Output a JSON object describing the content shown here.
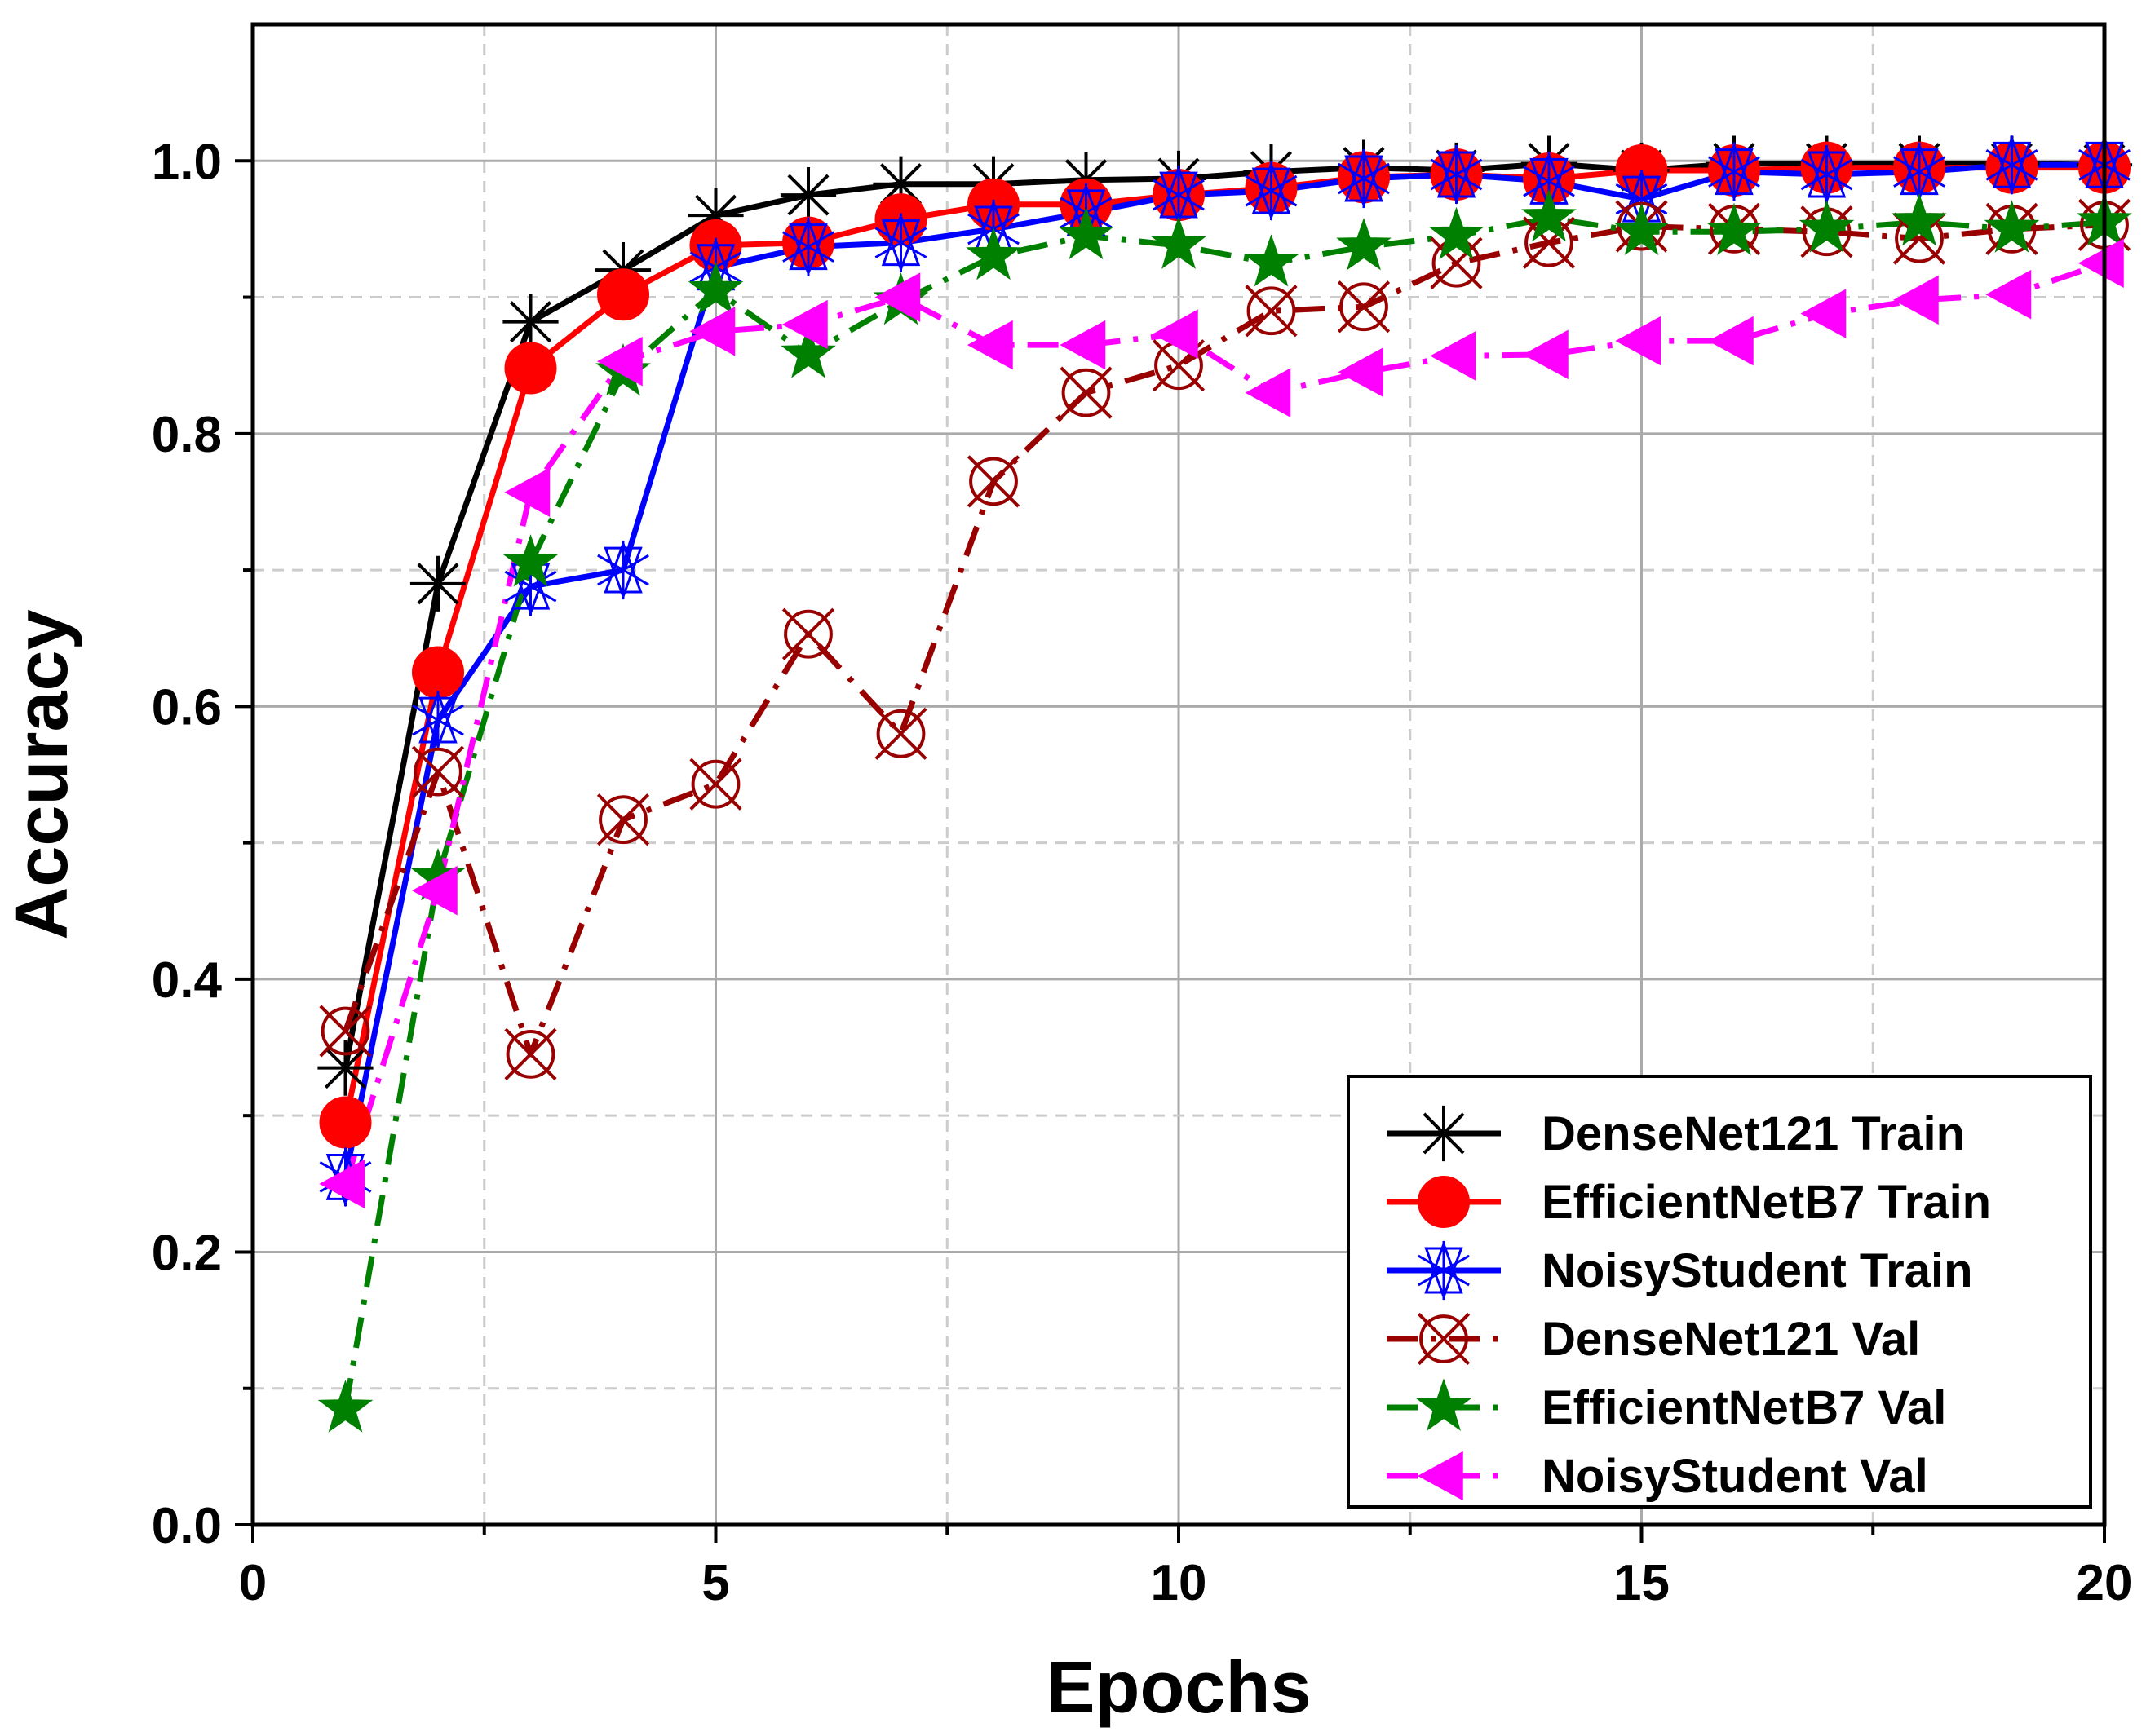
{
  "chart_data": {
    "type": "line",
    "xlabel": "Epochs",
    "ylabel": "Accuracy",
    "xlim": [
      0,
      20
    ],
    "ylim": [
      0,
      1.1
    ],
    "xticks": [
      0,
      5,
      10,
      15,
      20
    ],
    "yticks": [
      0.0,
      0.2,
      0.4,
      0.6,
      0.8,
      1.0
    ],
    "xtick_labels": [
      "0",
      "5",
      "10",
      "15",
      "20"
    ],
    "ytick_labels": [
      "0.0",
      "0.2",
      "0.4",
      "0.6",
      "0.8",
      "1.0"
    ],
    "grid": true,
    "legend_position": "bottom-right",
    "x": [
      1,
      2,
      3,
      4,
      5,
      6,
      7,
      8,
      9,
      10,
      11,
      12,
      13,
      14,
      15,
      16,
      17,
      18,
      19,
      20
    ],
    "series": [
      {
        "name": "DenseNet121 Train",
        "color": "#000000",
        "dash": "solid",
        "marker": "asterisk",
        "values": [
          0.335,
          0.69,
          0.882,
          0.92,
          0.96,
          0.975,
          0.983,
          0.983,
          0.986,
          0.987,
          0.992,
          0.995,
          0.993,
          0.998,
          0.993,
          0.998,
          0.998,
          0.998,
          0.998,
          0.997
        ]
      },
      {
        "name": "EfficientNetB7 Train",
        "color": "#ff0000",
        "dash": "solid",
        "marker": "circle",
        "values": [
          0.295,
          0.625,
          0.848,
          0.902,
          0.938,
          0.94,
          0.957,
          0.968,
          0.968,
          0.975,
          0.98,
          0.988,
          0.99,
          0.987,
          0.993,
          0.993,
          0.995,
          0.995,
          0.995,
          0.995
        ]
      },
      {
        "name": "NoisyStudent Train",
        "color": "#0000ff",
        "dash": "solid",
        "marker": "star-x",
        "values": [
          0.255,
          0.59,
          0.688,
          0.7,
          0.922,
          0.937,
          0.94,
          0.95,
          0.962,
          0.975,
          0.978,
          0.987,
          0.99,
          0.985,
          0.972,
          0.992,
          0.99,
          0.992,
          0.997,
          0.997
        ]
      },
      {
        "name": "DenseNet121 Val",
        "color": "#990000",
        "dash": "dashdot",
        "marker": "circle-x",
        "values": [
          0.362,
          0.552,
          0.345,
          0.517,
          0.543,
          0.653,
          0.58,
          0.765,
          0.83,
          0.85,
          0.89,
          0.893,
          0.925,
          0.94,
          0.952,
          0.95,
          0.948,
          0.943,
          0.95,
          0.953
        ]
      },
      {
        "name": "EfficientNetB7 Val",
        "color": "#008000",
        "dash": "dashdot",
        "marker": "star",
        "values": [
          0.085,
          0.475,
          0.705,
          0.845,
          0.905,
          0.858,
          0.897,
          0.93,
          0.945,
          0.938,
          0.925,
          0.937,
          0.945,
          0.958,
          0.948,
          0.948,
          0.95,
          0.955,
          0.95,
          0.955
        ]
      },
      {
        "name": "NoisyStudent Val",
        "color": "#ff00ff",
        "dash": "dashdot",
        "marker": "triangle-left",
        "values": [
          0.25,
          0.465,
          0.757,
          0.853,
          0.875,
          0.88,
          0.9,
          0.865,
          0.865,
          0.873,
          0.83,
          0.845,
          0.857,
          0.858,
          0.868,
          0.868,
          0.888,
          0.898,
          0.902,
          0.925
        ]
      }
    ]
  }
}
